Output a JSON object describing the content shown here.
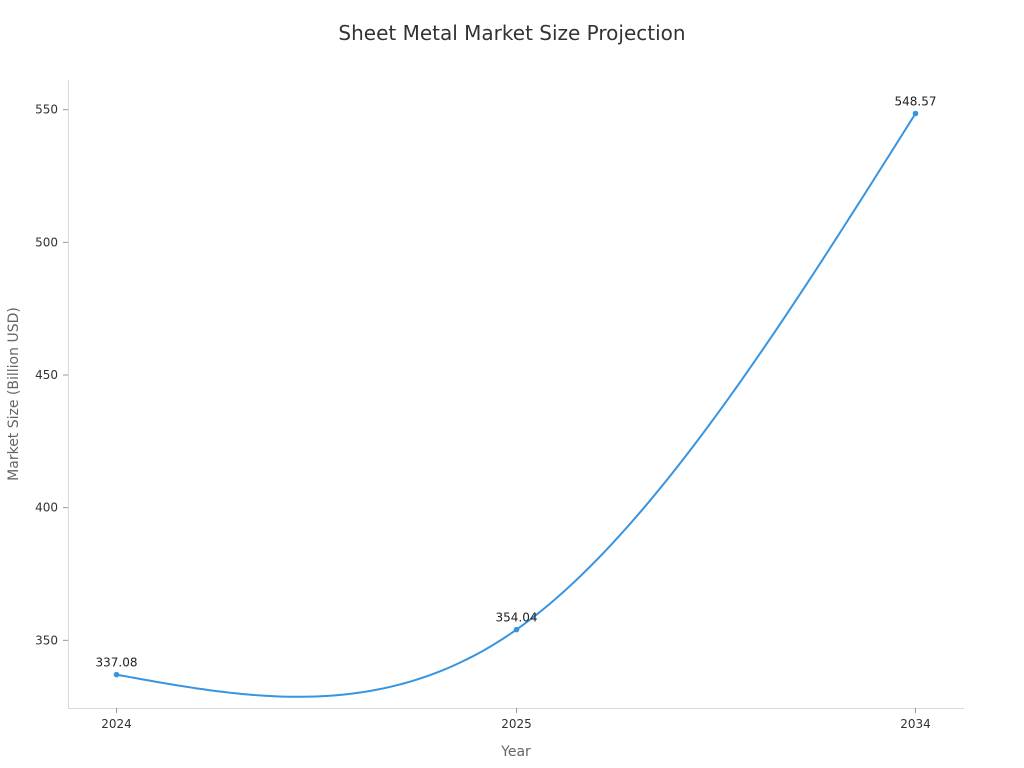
{
  "chart_data": {
    "type": "line",
    "title": "Sheet Metal Market Size Projection",
    "xlabel": "Year",
    "ylabel": "Market Size (Billion USD)",
    "categories": [
      "2024",
      "2025",
      "2034"
    ],
    "series": [
      {
        "values": [
          337.08,
          354.04,
          548.57
        ],
        "color": "#3794e0"
      }
    ],
    "data_labels": [
      "337.08",
      "354.04",
      "548.57"
    ],
    "y_ticks": [
      350,
      400,
      450,
      500,
      550
    ],
    "y_tick_labels": [
      "350",
      "400",
      "450",
      "500",
      "550"
    ],
    "ylim": [
      324.5,
      561.2
    ],
    "grid": false,
    "legend": "none"
  }
}
